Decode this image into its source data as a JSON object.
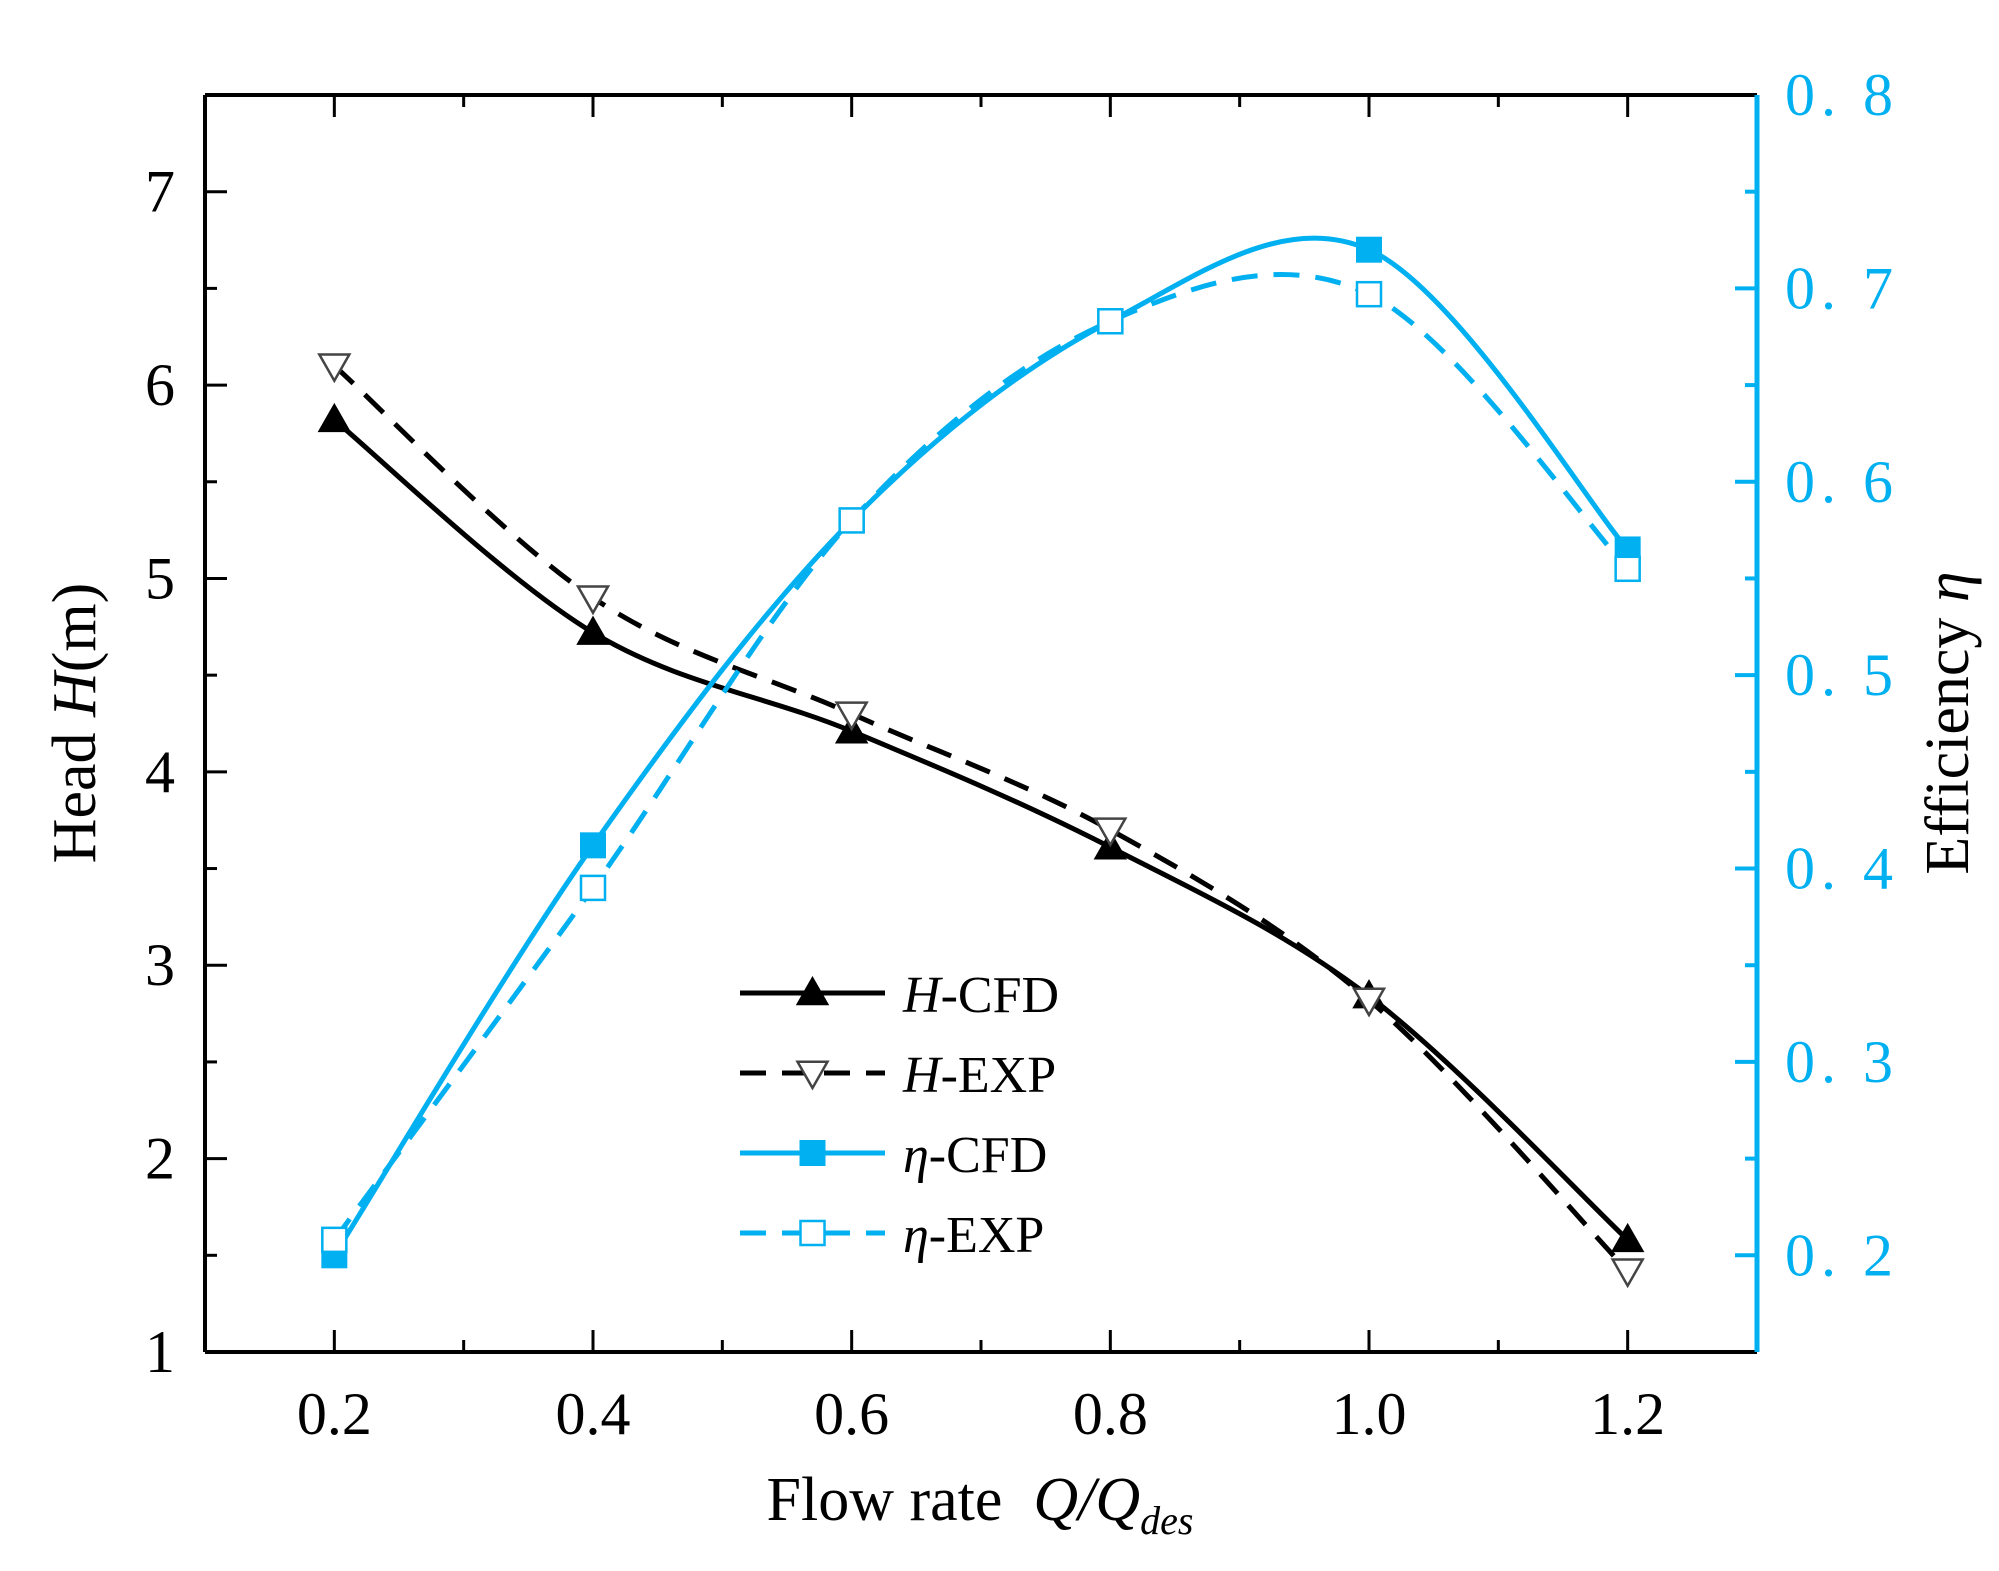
{
  "chart_data": {
    "type": "line",
    "xlabel": "Flow rate Q/Q_des",
    "xlabel_parts": {
      "prefix": "Flow rate  ",
      "q": "Q/Q",
      "sub": "des"
    },
    "ylabel_left": "Head H(m)",
    "ylabel_left_parts": {
      "prefix": "Head ",
      "italic": "H",
      "suffix": "(m)"
    },
    "ylabel_right": "Efficiency η",
    "ylabel_right_parts": {
      "prefix": "Efficiency ",
      "italic": "η"
    },
    "xlim": [
      0.1,
      1.3
    ],
    "ylim_left": [
      1,
      7.5
    ],
    "ylim_right": [
      0.15,
      0.8
    ],
    "x_ticks": [
      "0.2",
      "0.4",
      "0.6",
      "0.8",
      "1.0",
      "1.2"
    ],
    "y_left_ticks": [
      "1",
      "2",
      "3",
      "4",
      "5",
      "6",
      "7"
    ],
    "y_right_ticks": [
      "0.2",
      "0.3",
      "0.4",
      "0.5",
      "0.6",
      "0.7",
      "0.8"
    ],
    "colors": {
      "head": "#000000",
      "efficiency": "#00B0F0"
    },
    "series": [
      {
        "name": "H-CFD",
        "label_italic": "H",
        "label_rest": "-CFD",
        "axis": "left",
        "color": "#000000",
        "dash": false,
        "marker": "triangle-up-filled",
        "x": [
          0.2,
          0.4,
          0.6,
          0.8,
          1.0,
          1.2
        ],
        "values": [
          5.82,
          4.72,
          4.21,
          3.61,
          2.84,
          1.58
        ]
      },
      {
        "name": "H-EXP",
        "label_italic": "H",
        "label_rest": "-EXP",
        "axis": "left",
        "color": "#000000",
        "dash": true,
        "marker": "triangle-down-open",
        "x": [
          0.2,
          0.4,
          0.6,
          0.8,
          1.0,
          1.2
        ],
        "values": [
          6.1,
          4.9,
          4.3,
          3.7,
          2.82,
          1.42
        ]
      },
      {
        "name": "η-CFD",
        "label_italic": "η",
        "label_rest": "-CFD",
        "axis": "right",
        "color": "#00B0F0",
        "dash": false,
        "marker": "square-filled",
        "x": [
          0.2,
          0.4,
          0.6,
          0.8,
          1.0,
          1.2
        ],
        "values": [
          0.2,
          0.412,
          0.58,
          0.683,
          0.72,
          0.565
        ]
      },
      {
        "name": "η-EXP",
        "label_italic": "η",
        "label_rest": "-EXP",
        "axis": "right",
        "color": "#00B0F0",
        "dash": true,
        "marker": "square-open",
        "x": [
          0.2,
          0.4,
          0.6,
          0.8,
          1.0,
          1.2
        ],
        "values": [
          0.208,
          0.39,
          0.58,
          0.683,
          0.697,
          0.555
        ]
      }
    ]
  }
}
